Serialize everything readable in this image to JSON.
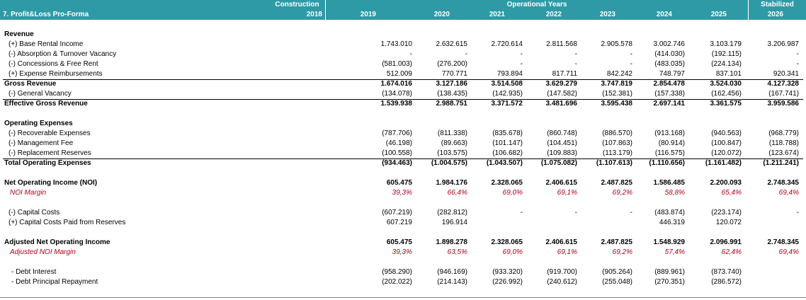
{
  "header": {
    "title": "7. Profit&Loss Pro-Forma",
    "groups": [
      "Construction",
      "Operational Years",
      "Stabilized"
    ],
    "years": [
      "2018",
      "2019",
      "2020",
      "2021",
      "2022",
      "2023",
      "2024",
      "2025",
      "2026"
    ]
  },
  "rows": [
    {
      "label": "Revenue",
      "style": "bold",
      "values": [
        "",
        "",
        "",
        "",
        "",
        "",
        "",
        "",
        ""
      ]
    },
    {
      "label": "(+) Base Rental Income",
      "style": "indent",
      "values": [
        "",
        "1.743.010",
        "2.632.615",
        "2.720.614",
        "2.811.568",
        "2.905.578",
        "3.002.746",
        "3.103.179",
        "3.206.987"
      ]
    },
    {
      "label": "(-) Absorption & Turnover Vacancy",
      "style": "indent",
      "values": [
        "",
        "-",
        "-",
        "-",
        "-",
        "-",
        "(414.030)",
        "(192.115)",
        "-"
      ]
    },
    {
      "label": "(-) Concessions & Free Rent",
      "style": "indent",
      "values": [
        "",
        "(581.003)",
        "(276.200)",
        "-",
        "-",
        "-",
        "(483.035)",
        "(224.134)",
        "-"
      ]
    },
    {
      "label": "(+) Expense Reimbursements",
      "style": "indent",
      "values": [
        "",
        "512.009",
        "770.771",
        "793.894",
        "817.711",
        "842.242",
        "748.797",
        "837.101",
        "920.341"
      ]
    },
    {
      "label": "Gross Revenue",
      "style": "bold-line",
      "values": [
        "",
        "1.674.016",
        "3.127.186",
        "3.514.508",
        "3.629.279",
        "3.747.819",
        "2.854.478",
        "3.524.030",
        "4.127.328"
      ]
    },
    {
      "label": "(-) General Vacancy",
      "style": "indent",
      "values": [
        "",
        "(134.078)",
        "(138.435)",
        "(142.935)",
        "(147.582)",
        "(152.381)",
        "(157.338)",
        "(162.456)",
        "(167.741)"
      ]
    },
    {
      "label": "Effective Gross Revenue",
      "style": "bold-line",
      "values": [
        "",
        "1.539.938",
        "2.988.751",
        "3.371.572",
        "3.481.696",
        "3.595.438",
        "2.697.141",
        "3.361.575",
        "3.959.586"
      ]
    },
    {
      "label": "",
      "style": "blank",
      "values": [
        "",
        "",
        "",
        "",
        "",
        "",
        "",
        "",
        ""
      ]
    },
    {
      "label": "Operating Expenses",
      "style": "bold",
      "values": [
        "",
        "",
        "",
        "",
        "",
        "",
        "",
        "",
        ""
      ]
    },
    {
      "label": "(-) Recoverable Expenses",
      "style": "indent",
      "values": [
        "",
        "(787.706)",
        "(811.338)",
        "(835.678)",
        "(860.748)",
        "(886.570)",
        "(913.168)",
        "(940.563)",
        "(968.779)"
      ]
    },
    {
      "label": "(-) Management Fee",
      "style": "indent",
      "values": [
        "",
        "(46.198)",
        "(89.663)",
        "(101.147)",
        "(104.451)",
        "(107.863)",
        "(80.914)",
        "(100.847)",
        "(118.788)"
      ]
    },
    {
      "label": "(-) Replacement Reserves",
      "style": "indent",
      "values": [
        "",
        "(100.558)",
        "(103.575)",
        "(106.682)",
        "(109.883)",
        "(113.179)",
        "(116.575)",
        "(120.072)",
        "(123.674)"
      ]
    },
    {
      "label": "Total Operating Expenses",
      "style": "bold-line",
      "values": [
        "",
        "(934.463)",
        "(1.004.575)",
        "(1.043.507)",
        "(1.075.082)",
        "(1.107.613)",
        "(1.110.656)",
        "(1.161.482)",
        "(1.211.241)"
      ]
    },
    {
      "label": "",
      "style": "blank",
      "values": [
        "",
        "",
        "",
        "",
        "",
        "",
        "",
        "",
        ""
      ]
    },
    {
      "label": "Net Operating Income (NOI)",
      "style": "bold",
      "values": [
        "",
        "605.475",
        "1.984.176",
        "2.328.065",
        "2.406.615",
        "2.487.825",
        "1.586.485",
        "2.200.093",
        "2.748.345"
      ]
    },
    {
      "label": "NOI Margin",
      "style": "red",
      "values": [
        "",
        "39,3%",
        "66,4%",
        "69,0%",
        "69,1%",
        "69,2%",
        "58,8%",
        "65,4%",
        "69,4%"
      ]
    },
    {
      "label": "",
      "style": "blank",
      "values": [
        "",
        "",
        "",
        "",
        "",
        "",
        "",
        "",
        ""
      ]
    },
    {
      "label": "(-) Capital Costs",
      "style": "indent",
      "values": [
        "",
        "(607.219)",
        "(282.812)",
        "-",
        "-",
        "-",
        "(483.874)",
        "(223.174)",
        "-"
      ]
    },
    {
      "label": "(+) Capital Costs Paid from Reserves",
      "style": "indent",
      "values": [
        "",
        "607.219",
        "196.914",
        "",
        "",
        "",
        "446.319",
        "120.072",
        ""
      ]
    },
    {
      "label": "",
      "style": "blank",
      "values": [
        "",
        "",
        "",
        "",
        "",
        "",
        "",
        "",
        ""
      ]
    },
    {
      "label": "Adjusted Net Operating Income",
      "style": "bold",
      "values": [
        "",
        "605.475",
        "1.898.278",
        "2.328.065",
        "2.406.615",
        "2.487.825",
        "1.548.929",
        "2.096.991",
        "2.748.345"
      ]
    },
    {
      "label": "Adjusted NOI Margin",
      "style": "red",
      "values": [
        "",
        "39,3%",
        "63,5%",
        "69,0%",
        "69,1%",
        "69,2%",
        "57,4%",
        "62,4%",
        "69,4%"
      ]
    },
    {
      "label": "",
      "style": "blank",
      "values": [
        "",
        "",
        "",
        "",
        "",
        "",
        "",
        "",
        ""
      ]
    },
    {
      "label": "- Debt Interest",
      "style": "indent2",
      "values": [
        "",
        "(958.290)",
        "(946.169)",
        "(933.320)",
        "(919.700)",
        "(905.264)",
        "(889.961)",
        "(873.740)",
        ""
      ]
    },
    {
      "label": "- Debt Principal Repayment",
      "style": "indent2",
      "values": [
        "",
        "(202.022)",
        "(214.143)",
        "(226.992)",
        "(240.612)",
        "(255.048)",
        "(270.351)",
        "(286.572)",
        ""
      ]
    }
  ]
}
